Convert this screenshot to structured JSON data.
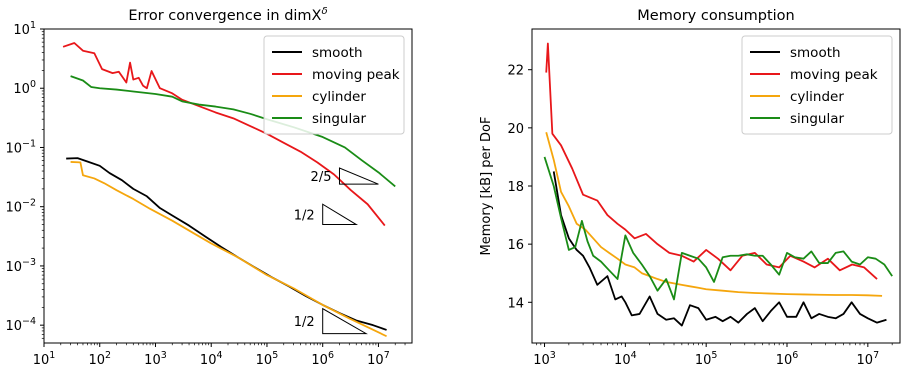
{
  "chart_data": [
    {
      "type": "line",
      "title": "Error convergence in dimX",
      "title_superscript": "δ",
      "xscale": "log",
      "yscale": "log",
      "xlim": [
        10,
        40000000
      ],
      "ylim": [
        5e-05,
        10
      ],
      "xticks": [
        {
          "base": "10",
          "exp": "1",
          "value": 10
        },
        {
          "base": "10",
          "exp": "2",
          "value": 100
        },
        {
          "base": "10",
          "exp": "3",
          "value": 1000
        },
        {
          "base": "10",
          "exp": "4",
          "value": 10000
        },
        {
          "base": "10",
          "exp": "5",
          "value": 100000
        },
        {
          "base": "10",
          "exp": "6",
          "value": 1000000
        },
        {
          "base": "10",
          "exp": "7",
          "value": 10000000
        }
      ],
      "yticks": [
        {
          "base": "10",
          "exp": "1",
          "value": 10
        },
        {
          "base": "10",
          "exp": "0",
          "value": 1
        },
        {
          "base": "10",
          "exp": "−1",
          "value": 0.1
        },
        {
          "base": "10",
          "exp": "−2",
          "value": 0.01
        },
        {
          "base": "10",
          "exp": "−3",
          "value": 0.001
        },
        {
          "base": "10",
          "exp": "−4",
          "value": 0.0001
        }
      ],
      "legend_position": "top-right",
      "series": [
        {
          "name": "smooth",
          "color": "#000000",
          "x": [
            25,
            40,
            60,
            100,
            150,
            250,
            400,
            700,
            1200,
            2000,
            4000,
            8000,
            15000,
            30000,
            60000,
            120000,
            250000,
            500000,
            1000000,
            2000000,
            4000000,
            8000000,
            14000000
          ],
          "y": [
            0.065,
            0.066,
            0.058,
            0.049,
            0.037,
            0.028,
            0.02,
            0.015,
            0.0095,
            0.0071,
            0.0048,
            0.0031,
            0.0021,
            0.0014,
            0.00095,
            0.00065,
            0.00045,
            0.00031,
            0.00022,
            0.00016,
            0.00012,
            0.0001,
            8.3e-05
          ]
        },
        {
          "name": "moving peak",
          "color": "#e8171a",
          "x": [
            22,
            35,
            50,
            80,
            110,
            170,
            220,
            300,
            350,
            400,
            500,
            600,
            700,
            850,
            1200,
            2000,
            3000,
            6000,
            12000,
            25000,
            50000,
            100000,
            200000,
            400000,
            800000,
            1600000,
            3200000,
            6400000,
            13000000
          ],
          "y": [
            5.0,
            5.8,
            4.3,
            3.9,
            2.1,
            1.8,
            1.9,
            1.25,
            2.7,
            1.4,
            1.5,
            1.1,
            1.0,
            1.95,
            1.0,
            0.82,
            0.64,
            0.5,
            0.39,
            0.31,
            0.23,
            0.17,
            0.12,
            0.085,
            0.056,
            0.035,
            0.019,
            0.011,
            0.0048
          ]
        },
        {
          "name": "cylinder",
          "color": "#f5a60d",
          "x": [
            30,
            45,
            50,
            80,
            120,
            200,
            400,
            800,
            2000,
            5000,
            10000,
            30000,
            100000,
            300000,
            1000000,
            3000000,
            14000000
          ],
          "y": [
            0.057,
            0.056,
            0.034,
            0.03,
            0.025,
            0.019,
            0.0135,
            0.0092,
            0.0058,
            0.0035,
            0.0024,
            0.0014,
            0.0007,
            0.00042,
            0.00022,
            0.00013,
            6.5e-05
          ]
        },
        {
          "name": "singular",
          "color": "#1a8c16",
          "x": [
            30,
            50,
            70,
            100,
            200,
            400,
            1000,
            2000,
            3000,
            6000,
            12000,
            25000,
            50000,
            100000,
            300000,
            1000000,
            2500000,
            5000000,
            10000000,
            20000000
          ],
          "y": [
            1.6,
            1.35,
            1.05,
            1.0,
            0.95,
            0.88,
            0.8,
            0.72,
            0.6,
            0.53,
            0.49,
            0.44,
            0.37,
            0.3,
            0.22,
            0.15,
            0.1,
            0.061,
            0.038,
            0.022
          ]
        }
      ],
      "annotations": [
        {
          "label": "2/5",
          "x0": 2000000,
          "x1": 10000000,
          "y_top": 0.045,
          "y_bottom": 0.024
        },
        {
          "label": "1/2",
          "x0": 1000000,
          "x1": 4000000,
          "y_top": 0.011,
          "y_bottom": 0.005
        },
        {
          "label": "1/2",
          "x0": 1000000,
          "x1": 6000000,
          "y_top": 0.00019,
          "y_bottom": 7.2e-05
        }
      ]
    },
    {
      "type": "line",
      "title": "Memory consumption",
      "ylabel": "Memory [kB] per DoF",
      "xscale": "log",
      "yscale": "linear",
      "xlim": [
        700,
        25000000
      ],
      "ylim": [
        12.6,
        23.4
      ],
      "xticks": [
        {
          "base": "10",
          "exp": "3",
          "value": 1000
        },
        {
          "base": "10",
          "exp": "4",
          "value": 10000
        },
        {
          "base": "10",
          "exp": "5",
          "value": 100000
        },
        {
          "base": "10",
          "exp": "6",
          "value": 1000000
        },
        {
          "base": "10",
          "exp": "7",
          "value": 10000000
        }
      ],
      "yticks": [
        {
          "label": "14",
          "value": 14
        },
        {
          "label": "16",
          "value": 16
        },
        {
          "label": "18",
          "value": 18
        },
        {
          "label": "20",
          "value": 20
        },
        {
          "label": "22",
          "value": 22
        }
      ],
      "legend_position": "top-right",
      "series": [
        {
          "name": "smooth",
          "color": "#000000",
          "x": [
            1300,
            1600,
            2000,
            2500,
            3000,
            3600,
            4500,
            6000,
            7500,
            9000,
            10000,
            12000,
            15000,
            20000,
            25000,
            32000,
            40000,
            50000,
            63000,
            80000,
            100000,
            130000,
            160000,
            200000,
            250000,
            320000,
            400000,
            500000,
            630000,
            800000,
            1000000,
            1300000,
            1600000,
            2000000,
            2500000,
            3200000,
            4000000,
            5000000,
            6300000,
            8000000,
            10000000,
            13000000,
            17000000
          ],
          "y": [
            18.5,
            17.0,
            16.2,
            15.8,
            15.6,
            15.2,
            14.6,
            14.9,
            14.1,
            14.2,
            14.0,
            13.55,
            13.6,
            14.2,
            13.6,
            13.4,
            13.45,
            13.2,
            13.9,
            13.8,
            13.4,
            13.5,
            13.35,
            13.5,
            13.3,
            13.6,
            13.8,
            13.35,
            13.7,
            14.0,
            13.5,
            13.5,
            14.0,
            13.45,
            13.6,
            13.5,
            13.45,
            13.6,
            14.0,
            13.6,
            13.45,
            13.3,
            13.4
          ]
        },
        {
          "name": "moving peak",
          "color": "#e8171a",
          "x": [
            1050,
            1100,
            1250,
            1600,
            2200,
            3000,
            4500,
            6000,
            8000,
            10000,
            13000,
            18000,
            25000,
            35000,
            50000,
            70000,
            100000,
            140000,
            200000,
            280000,
            400000,
            560000,
            800000,
            1100000,
            1600000,
            2200000,
            3200000,
            4500000,
            6400000,
            9000000,
            13000000
          ],
          "y": [
            21.9,
            22.9,
            19.8,
            19.4,
            18.6,
            17.7,
            17.5,
            17.0,
            16.7,
            16.5,
            16.2,
            16.35,
            16.0,
            15.7,
            15.6,
            15.4,
            15.8,
            15.5,
            15.1,
            15.6,
            15.7,
            15.3,
            15.2,
            15.6,
            15.4,
            15.2,
            15.5,
            15.1,
            15.3,
            15.2,
            14.8
          ]
        },
        {
          "name": "cylinder",
          "color": "#f5a60d",
          "x": [
            1050,
            1300,
            1600,
            2000,
            2500,
            3200,
            4000,
            5000,
            6300,
            8000,
            10000,
            13000,
            16000,
            20000,
            25000,
            32000,
            40000,
            50000,
            63000,
            80000,
            100000,
            160000,
            250000,
            400000,
            630000,
            1000000,
            1600000,
            2500000,
            4000000,
            6300000,
            10000000,
            15000000
          ],
          "y": [
            19.85,
            18.9,
            17.8,
            17.3,
            16.7,
            16.5,
            16.2,
            15.9,
            15.7,
            15.5,
            15.3,
            15.2,
            15.0,
            14.9,
            14.8,
            14.7,
            14.65,
            14.6,
            14.55,
            14.5,
            14.45,
            14.4,
            14.35,
            14.32,
            14.3,
            14.28,
            14.27,
            14.26,
            14.25,
            14.25,
            14.24,
            14.22
          ]
        },
        {
          "name": "singular",
          "color": "#1a8c16",
          "x": [
            1000,
            1300,
            1600,
            2000,
            2400,
            2900,
            3400,
            4000,
            5000,
            6300,
            8000,
            10000,
            12500,
            16000,
            20000,
            25000,
            32000,
            40000,
            50000,
            63000,
            80000,
            100000,
            125000,
            160000,
            200000,
            250000,
            320000,
            400000,
            500000,
            630000,
            800000,
            1000000,
            1250000,
            1600000,
            2000000,
            2500000,
            3200000,
            4000000,
            5000000,
            6300000,
            8000000,
            10000000,
            12500000,
            16000000,
            20000000
          ],
          "y": [
            19.0,
            18.0,
            16.9,
            15.8,
            15.9,
            16.8,
            16.1,
            15.6,
            15.4,
            15.1,
            14.8,
            16.3,
            15.7,
            15.3,
            14.9,
            14.4,
            14.8,
            14.1,
            15.7,
            15.6,
            15.5,
            15.2,
            14.7,
            15.55,
            15.6,
            15.6,
            15.65,
            15.6,
            15.6,
            15.3,
            14.95,
            15.7,
            15.55,
            15.5,
            15.75,
            15.35,
            15.35,
            15.7,
            15.75,
            15.4,
            15.3,
            15.55,
            15.5,
            15.3,
            14.9
          ]
        }
      ]
    }
  ]
}
